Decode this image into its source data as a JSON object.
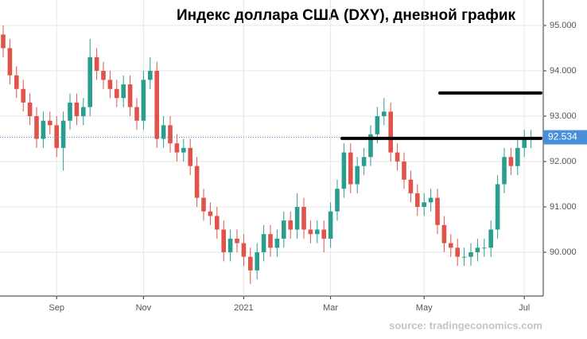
{
  "chart_data": {
    "type": "candlestick",
    "title": "Индекс доллара США (DXY), дневной график",
    "source": "source: tradingeconomics.com",
    "categories": [
      null,
      null,
      null,
      null,
      null,
      null,
      null,
      null,
      "Sep",
      null,
      null,
      null,
      null,
      null,
      null,
      null,
      null,
      null,
      null,
      null,
      null,
      "Nov",
      null,
      null,
      null,
      null,
      null,
      null,
      null,
      null,
      null,
      null,
      null,
      null,
      null,
      null,
      "2021",
      null,
      null,
      null,
      null,
      null,
      null,
      null,
      null,
      null,
      null,
      null,
      null,
      "Mar",
      null,
      null,
      null,
      null,
      null,
      null,
      null,
      null,
      null,
      null,
      null,
      null,
      null,
      "May",
      null,
      null,
      null,
      null,
      null,
      null,
      null,
      null,
      null,
      null,
      null,
      null,
      null,
      null,
      "Jul",
      null
    ],
    "open": [
      94.8,
      94.5,
      93.9,
      93.6,
      93.3,
      93.0,
      92.5,
      92.9,
      92.8,
      92.3,
      92.9,
      93.3,
      93.0,
      93.2,
      94.3,
      94.0,
      93.8,
      93.6,
      93.4,
      93.7,
      93.2,
      92.9,
      93.8,
      94.0,
      92.5,
      92.8,
      92.4,
      92.2,
      92.3,
      91.9,
      91.2,
      90.9,
      90.8,
      90.5,
      90.0,
      90.3,
      90.2,
      89.9,
      89.6,
      90.0,
      90.4,
      90.1,
      90.3,
      90.7,
      90.5,
      91.0,
      90.5,
      90.4,
      90.5,
      90.3,
      90.9,
      91.4,
      92.2,
      91.5,
      91.9,
      92.1,
      92.6,
      93.0,
      93.1,
      92.2,
      92.0,
      91.6,
      91.3,
      91.0,
      91.1,
      91.2,
      90.6,
      90.2,
      90.1,
      89.9,
      89.9,
      90.0,
      90.1,
      90.1,
      90.5,
      91.5,
      92.1,
      91.9,
      92.3,
      92.5
    ],
    "high": [
      95.0,
      94.7,
      94.1,
      93.8,
      93.5,
      93.2,
      93.1,
      93.1,
      93.0,
      93.1,
      93.5,
      93.5,
      93.4,
      94.7,
      94.5,
      94.2,
      94.0,
      93.8,
      93.9,
      93.9,
      93.4,
      94.0,
      94.3,
      94.2,
      93.0,
      93.0,
      92.6,
      92.5,
      92.5,
      92.1,
      91.4,
      91.1,
      91.0,
      90.7,
      90.5,
      90.5,
      90.4,
      90.1,
      90.2,
      90.6,
      90.6,
      90.5,
      90.9,
      90.9,
      91.3,
      91.2,
      90.7,
      90.7,
      90.7,
      91.1,
      91.6,
      92.4,
      92.4,
      92.1,
      92.3,
      92.8,
      93.2,
      93.4,
      93.3,
      92.4,
      92.2,
      91.8,
      91.5,
      91.3,
      91.4,
      91.4,
      90.8,
      90.4,
      90.3,
      90.1,
      90.2,
      90.3,
      90.3,
      90.7,
      91.7,
      92.3,
      92.3,
      92.5,
      92.7,
      92.7
    ],
    "low": [
      94.3,
      93.7,
      93.4,
      93.1,
      92.8,
      92.3,
      92.3,
      92.6,
      92.1,
      91.8,
      92.7,
      92.8,
      92.8,
      93.0,
      93.8,
      93.6,
      93.4,
      93.2,
      93.2,
      93.0,
      92.7,
      92.7,
      93.6,
      92.3,
      92.3,
      92.2,
      92.0,
      92.0,
      91.7,
      91.0,
      90.7,
      90.6,
      90.3,
      89.8,
      89.8,
      90.0,
      89.7,
      89.3,
      89.4,
      89.8,
      89.9,
      89.9,
      90.1,
      90.3,
      90.3,
      90.3,
      90.2,
      90.2,
      90.0,
      90.1,
      90.7,
      91.2,
      91.3,
      91.3,
      91.7,
      91.9,
      92.4,
      92.8,
      92.0,
      91.8,
      91.4,
      91.1,
      90.8,
      90.8,
      90.9,
      90.4,
      90.0,
      89.9,
      89.7,
      89.7,
      89.7,
      89.8,
      89.9,
      89.9,
      90.3,
      91.3,
      91.7,
      91.7,
      92.1,
      92.3
    ],
    "close": [
      94.5,
      93.9,
      93.6,
      93.3,
      93.0,
      92.5,
      92.9,
      92.8,
      92.3,
      92.9,
      93.3,
      93.0,
      93.2,
      94.3,
      94.0,
      93.8,
      93.6,
      93.4,
      93.7,
      93.2,
      92.9,
      93.8,
      94.0,
      92.5,
      92.8,
      92.4,
      92.2,
      92.3,
      91.9,
      91.2,
      90.9,
      90.8,
      90.5,
      90.0,
      90.3,
      90.2,
      89.9,
      89.6,
      90.0,
      90.4,
      90.1,
      90.3,
      90.7,
      90.5,
      91.0,
      90.5,
      90.4,
      90.5,
      90.3,
      90.9,
      91.4,
      92.2,
      91.5,
      91.9,
      92.1,
      92.6,
      93.0,
      93.1,
      92.2,
      92.0,
      91.6,
      91.3,
      91.0,
      91.1,
      91.2,
      90.6,
      90.2,
      90.1,
      89.9,
      89.9,
      90.0,
      90.1,
      90.1,
      90.5,
      91.5,
      92.1,
      91.9,
      92.3,
      92.5,
      92.53
    ],
    "up_color": "#2a9d8f",
    "down_color": "#e0534a",
    "last_price": 92.534,
    "last_price_color": "#4a90d9",
    "levels": [
      92.51,
      93.51
    ],
    "level_color": "#000000",
    "ylim": [
      89.035,
      95.561
    ],
    "yticks": [
      {
        "value": 90,
        "label": "90.000"
      },
      {
        "value": 91,
        "label": "91.000"
      },
      {
        "value": 92,
        "label": "92.000"
      },
      {
        "value": 93,
        "label": "93.000"
      },
      {
        "value": 94,
        "label": "94.000"
      },
      {
        "value": 95,
        "label": "95.000"
      }
    ],
    "grid": true
  }
}
